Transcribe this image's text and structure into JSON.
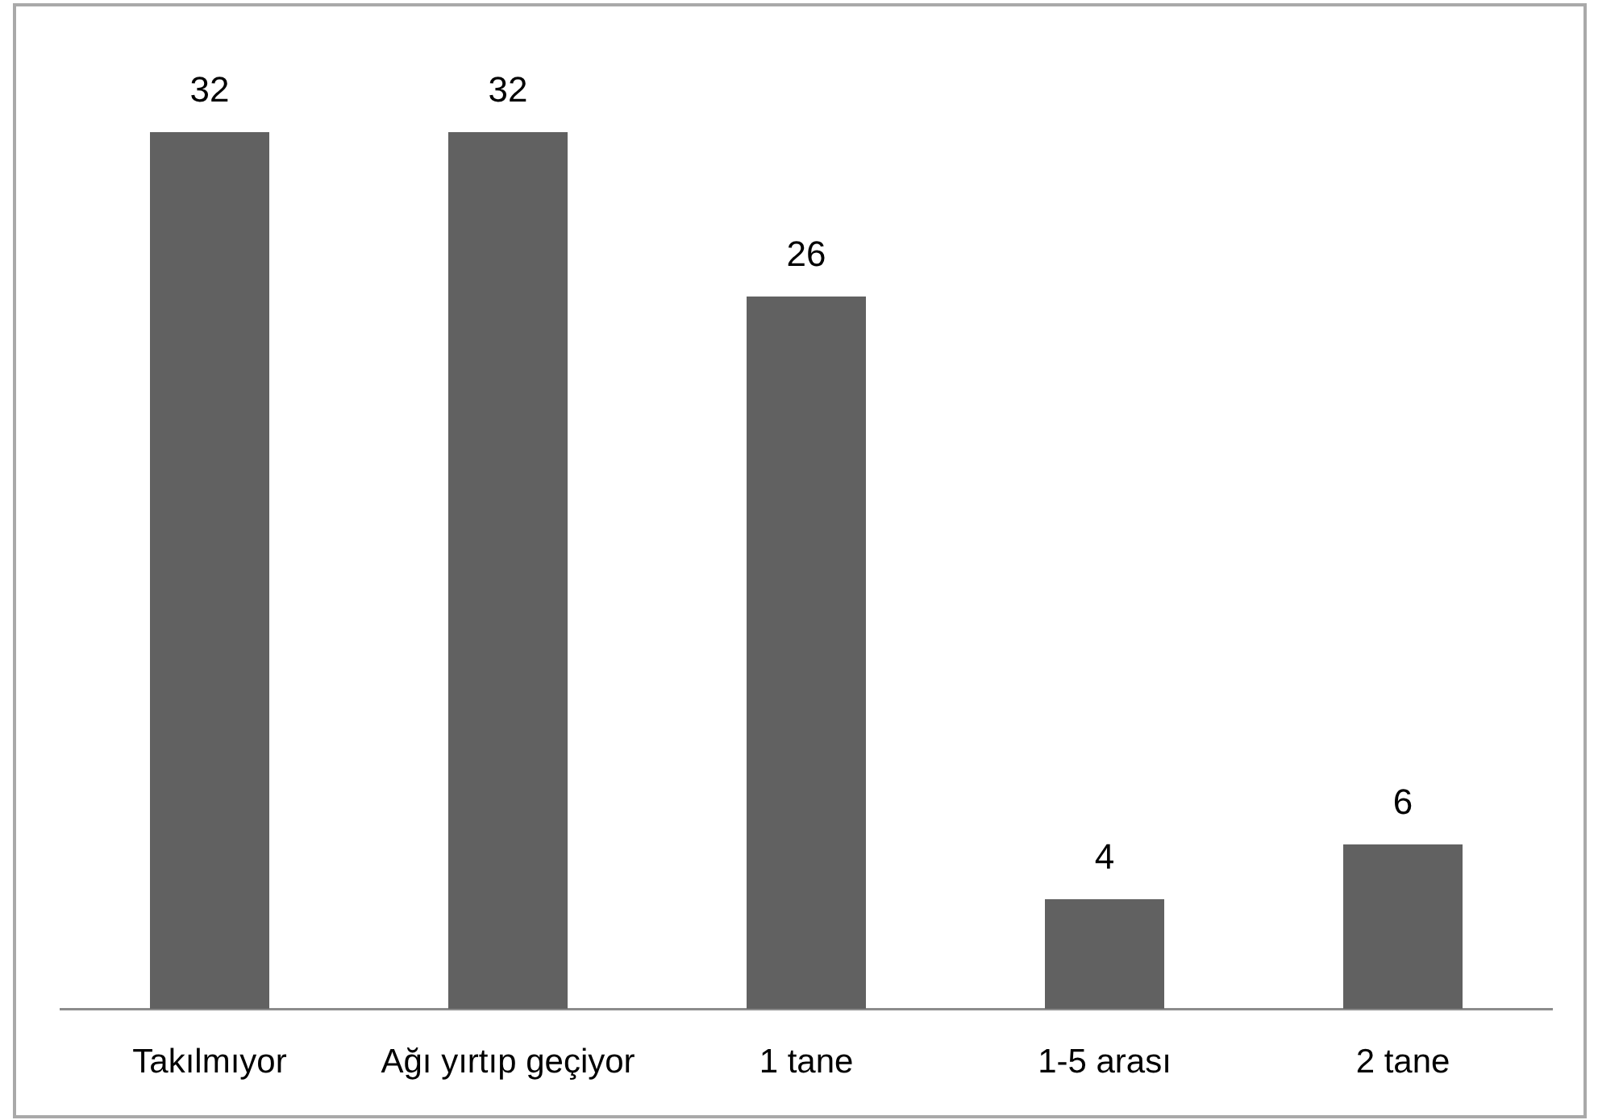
{
  "chart_data": {
    "type": "bar",
    "categories": [
      "Takılmıyor",
      "Ağı yırtıp geçiyor",
      "1 tane",
      "1-5 arası",
      "2 tane"
    ],
    "values": [
      32,
      32,
      26,
      4,
      6
    ],
    "color": "#616161",
    "data_labels": true,
    "grid": false,
    "legend": false,
    "tick_labels": "x"
  }
}
